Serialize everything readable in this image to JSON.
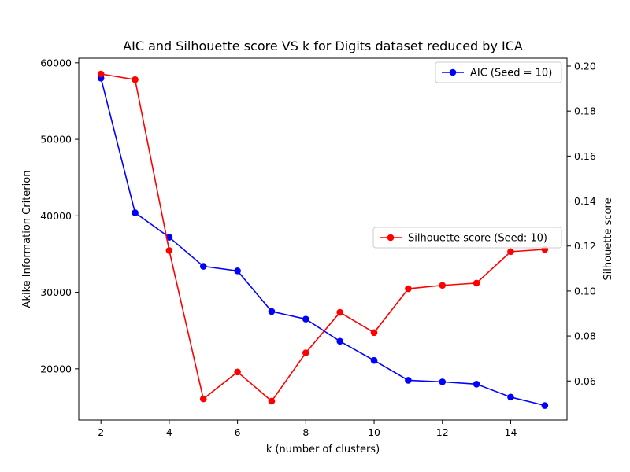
{
  "chart_data": {
    "type": "line",
    "title": "AIC and Silhouette score VS k for Digits dataset reduced by ICA",
    "xlabel": "k (number of clusters)",
    "ylabel_left": "Akike Information Criterion",
    "ylabel_right": "Silhouette score",
    "x": [
      2,
      3,
      4,
      5,
      6,
      7,
      8,
      9,
      10,
      11,
      12,
      13,
      14,
      15
    ],
    "xlim": [
      1.35,
      15.65
    ],
    "xticks": [
      2,
      4,
      6,
      8,
      10,
      12,
      14
    ],
    "ylim_left": [
      13300,
      60600
    ],
    "yticks_left": [
      20000,
      30000,
      40000,
      50000,
      60000
    ],
    "ylim_right": [
      0.0426,
      0.2035
    ],
    "yticks_right": [
      0.06,
      0.08,
      0.1,
      0.12,
      0.14,
      0.16,
      0.18,
      0.2
    ],
    "grid": false,
    "series": [
      {
        "name": "AIC (Seed = 10)",
        "axis": "left",
        "color": "#0000ff",
        "legend_placement": "top-right",
        "values": [
          58000,
          40400,
          37200,
          33400,
          32800,
          27500,
          26500,
          23600,
          21100,
          18500,
          18300,
          18000,
          16300,
          15200
        ]
      },
      {
        "name": "Silhouette score (Seed: 10)",
        "axis": "right",
        "color": "#ff0000",
        "legend_placement": "center-right",
        "values": [
          0.1965,
          0.194,
          0.118,
          0.052,
          0.064,
          0.051,
          0.0725,
          0.0905,
          0.0815,
          0.101,
          0.1025,
          0.1035,
          0.1175,
          0.1185
        ]
      }
    ]
  }
}
